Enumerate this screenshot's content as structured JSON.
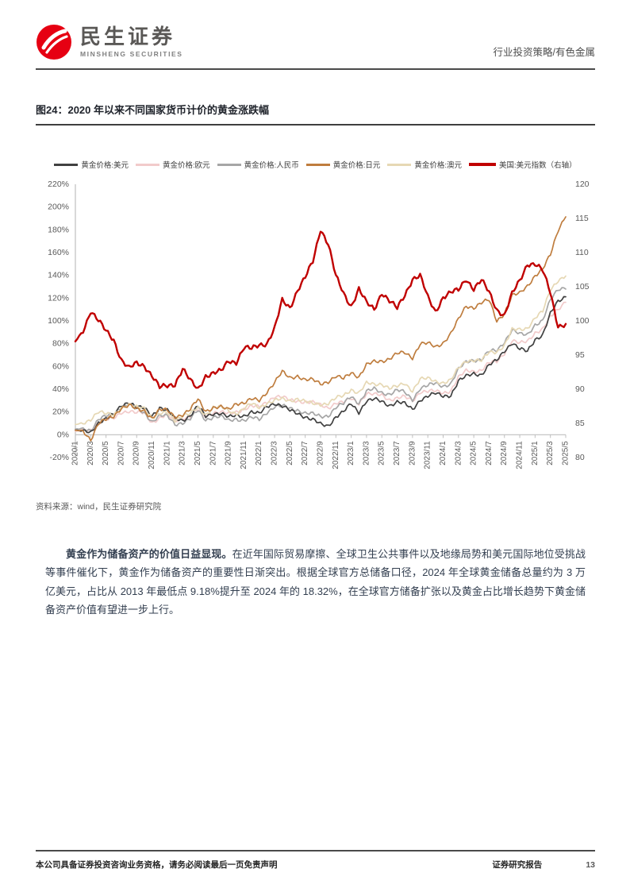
{
  "header": {
    "logo_cn": "民生证券",
    "logo_en": "MINSHENG SECURITIES",
    "category": "行业投资策略/有色金属",
    "brand_color": "#e60012"
  },
  "figure": {
    "title": "图24：2020 年以来不同国家货币计价的黄金涨跌幅",
    "source": "资料来源：wind，民生证券研究院"
  },
  "chart_data": {
    "type": "line",
    "title": "2020 年以来不同国家货币计价的黄金涨跌幅",
    "grid": false,
    "legend_position": "top",
    "x": [
      "2020/1",
      "2020/2",
      "2020/3",
      "2020/4",
      "2020/5",
      "2020/6",
      "2020/7",
      "2020/8",
      "2020/9",
      "2020/10",
      "2020/11",
      "2020/12",
      "2021/1",
      "2021/2",
      "2021/3",
      "2021/4",
      "2021/5",
      "2021/6",
      "2021/7",
      "2021/8",
      "2021/9",
      "2021/10",
      "2021/11",
      "2021/12",
      "2022/1",
      "2022/2",
      "2022/3",
      "2022/4",
      "2022/5",
      "2022/6",
      "2022/7",
      "2022/8",
      "2022/9",
      "2022/10",
      "2022/11",
      "2022/12",
      "2023/1",
      "2023/2",
      "2023/3",
      "2023/4",
      "2023/5",
      "2023/6",
      "2023/7",
      "2023/8",
      "2023/9",
      "2023/10",
      "2023/11",
      "2023/12",
      "2024/1",
      "2024/2",
      "2024/3",
      "2024/4",
      "2024/5",
      "2024/6",
      "2024/7",
      "2024/8",
      "2024/9",
      "2024/10",
      "2024/11",
      "2024/12",
      "2025/1",
      "2025/2",
      "2025/3",
      "2025/4",
      "2025/5"
    ],
    "x_tick_step": 2,
    "left_axis": {
      "min": -20,
      "max": 220,
      "tick_labels": [
        "220%",
        "200%",
        "180%",
        "160%",
        "140%",
        "120%",
        "100%",
        "80%",
        "60%",
        "40%",
        "20%",
        "0%",
        "-20%"
      ]
    },
    "right_axis": {
      "min": 80,
      "max": 120,
      "tick_labels": [
        120,
        115,
        110,
        105,
        100,
        95,
        90,
        85,
        80
      ]
    },
    "series": [
      {
        "name": "黄金价格:美元",
        "color": "#404040",
        "axis": "left",
        "values": [
          4,
          3,
          2,
          11,
          14,
          17,
          26,
          29,
          24,
          23,
          17,
          24,
          21,
          14,
          13,
          17,
          25,
          16,
          19,
          19,
          15,
          17,
          17,
          20,
          18,
          25,
          28,
          25,
          21,
          19,
          16,
          13,
          9,
          8,
          16,
          20,
          27,
          20,
          30,
          31,
          29,
          26,
          29,
          27,
          22,
          31,
          34,
          36,
          34,
          35,
          47,
          51,
          54,
          53,
          61,
          65,
          74,
          81,
          75,
          73,
          84,
          88,
          106,
          117,
          122
        ]
      },
      {
        "name": "黄金价格:欧元",
        "color": "#f2cbcb",
        "axis": "left",
        "values": [
          3,
          4,
          4,
          11,
          13,
          14,
          20,
          21,
          19,
          19,
          11,
          15,
          17,
          12,
          15,
          16,
          22,
          16,
          20,
          20,
          18,
          20,
          23,
          25,
          24,
          29,
          34,
          33,
          30,
          30,
          29,
          28,
          26,
          24,
          28,
          28,
          32,
          28,
          36,
          35,
          35,
          31,
          32,
          33,
          30,
          38,
          38,
          38,
          37,
          39,
          50,
          56,
          56,
          57,
          63,
          64,
          72,
          83,
          80,
          82,
          90,
          93,
          103,
          110,
          118
        ]
      },
      {
        "name": "黄金价格:人民币",
        "color": "#a6a6a6",
        "axis": "left",
        "values": [
          5,
          5,
          4,
          14,
          16,
          18,
          25,
          27,
          22,
          19,
          12,
          17,
          16,
          9,
          11,
          14,
          21,
          13,
          16,
          16,
          12,
          14,
          13,
          15,
          13,
          20,
          25,
          25,
          23,
          22,
          19,
          18,
          16,
          17,
          24,
          27,
          34,
          28,
          38,
          40,
          37,
          36,
          39,
          37,
          31,
          41,
          43,
          45,
          43,
          45,
          57,
          64,
          66,
          66,
          73,
          74,
          82,
          92,
          88,
          88,
          97,
          100,
          118,
          128,
          130
        ]
      },
      {
        "name": "黄金价格:日元",
        "color": "#bf7d3e",
        "axis": "left",
        "values": [
          4,
          3,
          -4,
          10,
          13,
          16,
          24,
          26,
          22,
          21,
          15,
          22,
          21,
          16,
          18,
          22,
          31,
          21,
          24,
          24,
          22,
          28,
          28,
          31,
          30,
          38,
          46,
          55,
          50,
          52,
          48,
          48,
          45,
          47,
          51,
          49,
          55,
          51,
          61,
          64,
          65,
          67,
          71,
          72,
          68,
          80,
          80,
          77,
          81,
          89,
          101,
          113,
          112,
          116,
          118,
          100,
          107,
          122,
          124,
          131,
          140,
          145,
          158,
          180,
          193
        ]
      },
      {
        "name": "黄金价格:澳元",
        "color": "#e6d8b4",
        "axis": "left",
        "values": [
          9,
          10,
          14,
          20,
          18,
          18,
          24,
          26,
          24,
          24,
          15,
          18,
          19,
          13,
          17,
          18,
          24,
          18,
          24,
          24,
          21,
          19,
          23,
          27,
          24,
          28,
          30,
          31,
          30,
          32,
          29,
          27,
          27,
          28,
          32,
          34,
          40,
          37,
          45,
          44,
          45,
          41,
          42,
          45,
          39,
          49,
          49,
          47,
          46,
          48,
          58,
          65,
          66,
          65,
          72,
          73,
          79,
          92,
          92,
          94,
          103,
          108,
          127,
          136,
          140
        ]
      },
      {
        "name": "美国:美元指数（右轴）",
        "color": "#c00000",
        "axis": "right",
        "values": [
          97,
          98.5,
          101.5,
          100,
          98.5,
          97.3,
          94.3,
          93,
          93.8,
          93.5,
          92,
          90.2,
          90.5,
          90.8,
          93,
          91.2,
          90,
          92,
          92.3,
          92.6,
          94.2,
          94,
          96,
          95.9,
          96.6,
          96.7,
          98.8,
          103,
          102,
          104.5,
          106.3,
          108.7,
          113.5,
          111.3,
          106.5,
          104,
          102.2,
          104.7,
          102.6,
          101.7,
          104.2,
          102.9,
          101.8,
          103.8,
          106.2,
          106.6,
          103.4,
          101.4,
          103.5,
          104.1,
          104.5,
          106.2,
          104.7,
          105.9,
          104.2,
          101.7,
          100.8,
          103.9,
          105.9,
          108.4,
          108.3,
          107.3,
          104.2,
          99.3,
          99.4
        ]
      }
    ]
  },
  "body": {
    "lead_bold": "黄金作为储备资产的价值日益显现。",
    "text": "在近年国际贸易摩擦、全球卫生公共事件以及地缘局势和美元国际地位受挑战等事件催化下，黄金作为储备资产的重要性日渐突出。根据全球官方总储备口径，2024 年全球黄金储备总量约为 3 万亿美元，占比从 2013 年最低点 9.18%提升至 2024 年的 18.32%，在全球官方储备扩张以及黄金占比增长趋势下黄金储备资产价值有望进一步上行。"
  },
  "footer": {
    "left": "本公司具备证券投资咨询业务资格，请务必阅读最后一页免责声明",
    "right_label": "证券研究报告",
    "page": "13"
  }
}
